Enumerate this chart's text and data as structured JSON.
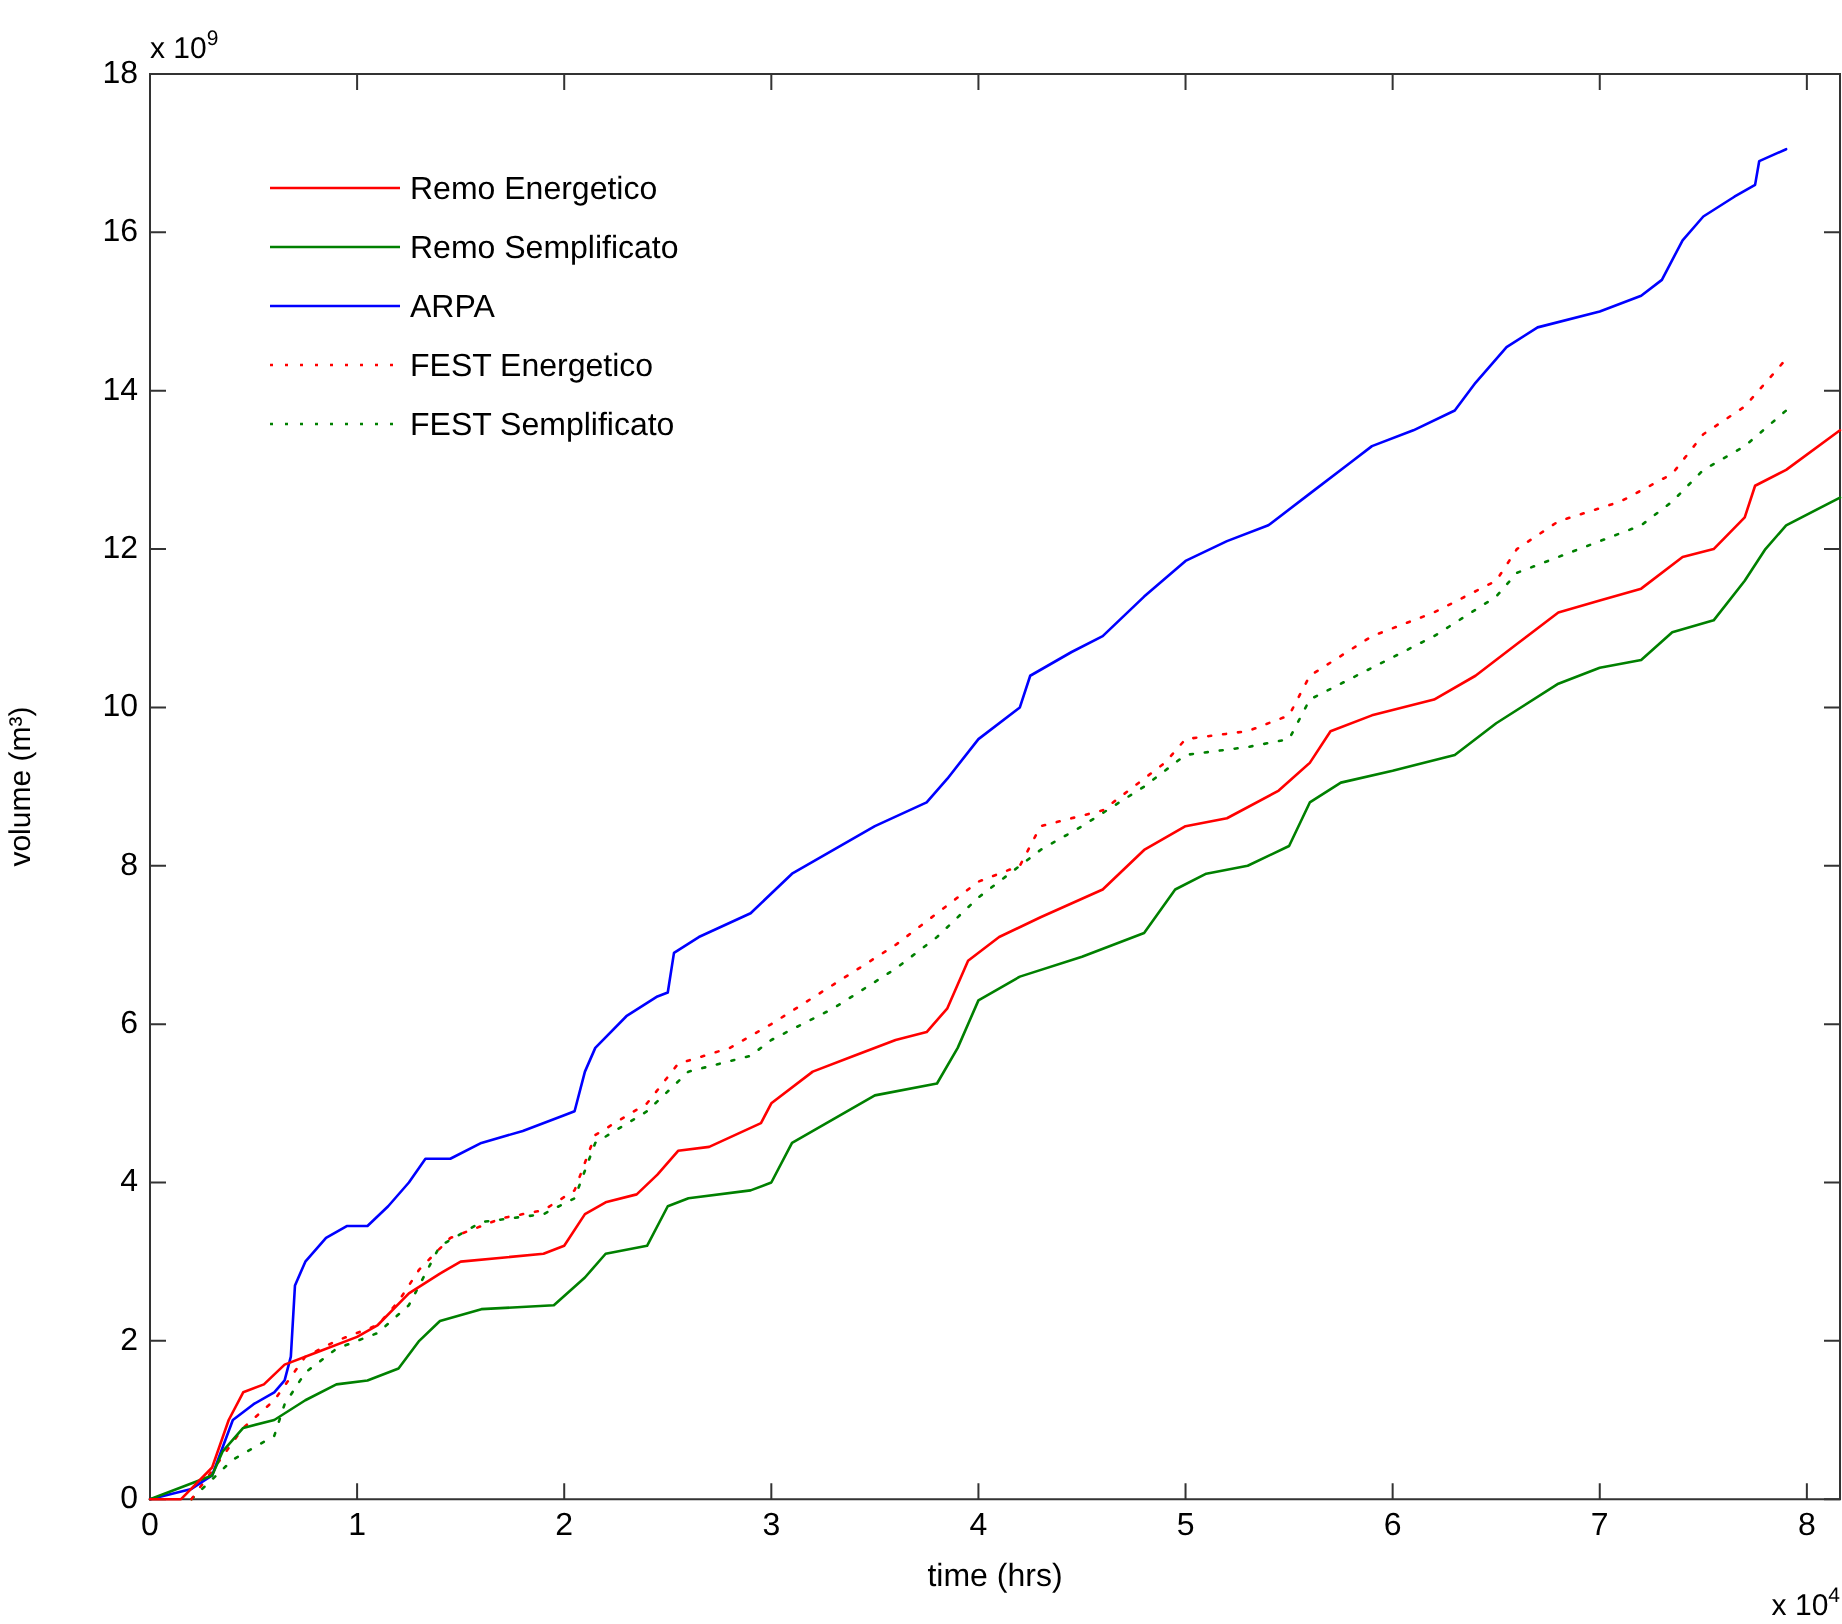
{
  "chart_data": {
    "type": "line",
    "xlabel": "time (hrs)",
    "ylabel": "volume (m³)",
    "xlim": [
      0,
      8.16
    ],
    "ylim": [
      0,
      18
    ],
    "xticks": [
      0,
      1,
      2,
      3,
      4,
      5,
      6,
      7,
      8
    ],
    "yticks": [
      0,
      2,
      4,
      6,
      8,
      10,
      12,
      14,
      16,
      18
    ],
    "grid": false,
    "legend": "top left",
    "marker": "none",
    "annotations": [
      "x 10$^{9}$",
      "x 10$^{4}$"
    ],
    "series": [
      {
        "name": "Remo Energetico",
        "color": "#ff0000",
        "line_style": "solid",
        "x": [
          0,
          0.15,
          0.3,
          0.38,
          0.45,
          0.55,
          0.65,
          0.8,
          1.0,
          1.1,
          1.25,
          1.4,
          1.5,
          1.9,
          2.0,
          2.1,
          2.2,
          2.35,
          2.45,
          2.55,
          2.7,
          2.95,
          3.0,
          3.2,
          3.4,
          3.6,
          3.75,
          3.85,
          3.95,
          4.1,
          4.3,
          4.6,
          4.8,
          5.0,
          5.2,
          5.45,
          5.6,
          5.7,
          5.9,
          6.2,
          6.4,
          6.6,
          6.8,
          7.0,
          7.2,
          7.4,
          7.55,
          7.7,
          7.75,
          7.9,
          8.16
        ],
        "values": [
          0,
          0,
          0.4,
          1.0,
          1.35,
          1.45,
          1.7,
          1.85,
          2.05,
          2.2,
          2.6,
          2.85,
          3.0,
          3.1,
          3.2,
          3.6,
          3.75,
          3.85,
          4.1,
          4.4,
          4.45,
          4.75,
          5.0,
          5.4,
          5.6,
          5.8,
          5.9,
          6.2,
          6.8,
          7.1,
          7.35,
          7.7,
          8.2,
          8.5,
          8.6,
          8.95,
          9.3,
          9.7,
          9.9,
          10.1,
          10.4,
          10.8,
          11.2,
          11.35,
          11.5,
          11.9,
          12.0,
          12.4,
          12.8,
          13.0,
          13.5
        ]
      },
      {
        "name": "Remo Semplificato",
        "color": "#008000",
        "line_style": "solid",
        "x": [
          0,
          0.3,
          0.35,
          0.45,
          0.6,
          0.75,
          0.9,
          1.05,
          1.2,
          1.3,
          1.4,
          1.6,
          1.95,
          2.1,
          2.2,
          2.4,
          2.5,
          2.6,
          2.9,
          3.0,
          3.1,
          3.3,
          3.5,
          3.8,
          3.9,
          4.0,
          4.2,
          4.5,
          4.8,
          4.95,
          5.1,
          5.3,
          5.5,
          5.6,
          5.75,
          6.0,
          6.3,
          6.5,
          6.8,
          7.0,
          7.2,
          7.35,
          7.55,
          7.7,
          7.8,
          7.9,
          8.16
        ],
        "values": [
          0,
          0.3,
          0.6,
          0.9,
          1.0,
          1.25,
          1.45,
          1.5,
          1.65,
          2.0,
          2.25,
          2.4,
          2.45,
          2.8,
          3.1,
          3.2,
          3.7,
          3.8,
          3.9,
          4.0,
          4.5,
          4.8,
          5.1,
          5.25,
          5.7,
          6.3,
          6.6,
          6.85,
          7.15,
          7.7,
          7.9,
          8.0,
          8.25,
          8.8,
          9.05,
          9.2,
          9.4,
          9.8,
          10.3,
          10.5,
          10.6,
          10.95,
          11.1,
          11.6,
          12.0,
          12.3,
          12.65
        ]
      },
      {
        "name": "ARPA",
        "color": "#0000ff",
        "line_style": "solid",
        "x": [
          0,
          0.2,
          0.3,
          0.4,
          0.5,
          0.6,
          0.65,
          0.68,
          0.7,
          0.75,
          0.85,
          0.95,
          1.05,
          1.15,
          1.25,
          1.33,
          1.45,
          1.6,
          1.8,
          2.0,
          2.05,
          2.1,
          2.15,
          2.3,
          2.45,
          2.5,
          2.53,
          2.65,
          2.9,
          3.1,
          3.3,
          3.5,
          3.75,
          3.85,
          4.0,
          4.2,
          4.25,
          4.45,
          4.6,
          4.8,
          5.0,
          5.2,
          5.4,
          5.6,
          5.8,
          5.9,
          6.1,
          6.3,
          6.4,
          6.55,
          6.7,
          7.0,
          7.2,
          7.3,
          7.4,
          7.5,
          7.65,
          7.75,
          7.77,
          7.9
        ],
        "values": [
          0,
          0.13,
          0.3,
          1.0,
          1.2,
          1.35,
          1.5,
          1.8,
          2.7,
          3.0,
          3.3,
          3.45,
          3.45,
          3.7,
          4.0,
          4.3,
          4.3,
          4.5,
          4.65,
          4.85,
          4.9,
          5.4,
          5.7,
          6.1,
          6.35,
          6.4,
          6.9,
          7.1,
          7.4,
          7.9,
          8.2,
          8.5,
          8.8,
          9.1,
          9.6,
          10.0,
          10.4,
          10.7,
          10.9,
          11.4,
          11.85,
          12.1,
          12.3,
          12.7,
          13.1,
          13.3,
          13.5,
          13.75,
          14.1,
          14.55,
          14.8,
          15.0,
          15.2,
          15.4,
          15.9,
          16.2,
          16.45,
          16.6,
          16.9,
          17.05
        ]
      },
      {
        "name": "FEST Energetico",
        "color": "#ff0000",
        "line_style": "dotted",
        "x": [
          0.2,
          0.45,
          0.6,
          0.75,
          0.9,
          1.1,
          1.2,
          1.3,
          1.45,
          1.7,
          1.9,
          2.05,
          2.15,
          2.4,
          2.55,
          2.8,
          3.0,
          3.3,
          3.6,
          3.8,
          4.0,
          4.2,
          4.3,
          4.6,
          4.9,
          5.0,
          5.3,
          5.5,
          5.6,
          5.9,
          6.2,
          6.5,
          6.6,
          6.8,
          7.1,
          7.35,
          7.5,
          7.7,
          7.9
        ],
        "values": [
          0,
          0.9,
          1.25,
          1.8,
          2.0,
          2.2,
          2.5,
          2.9,
          3.3,
          3.55,
          3.65,
          3.9,
          4.6,
          5.0,
          5.5,
          5.7,
          6.0,
          6.5,
          7.0,
          7.4,
          7.8,
          8.0,
          8.5,
          8.7,
          9.3,
          9.6,
          9.7,
          9.9,
          10.4,
          10.9,
          11.2,
          11.6,
          12.0,
          12.35,
          12.6,
          12.95,
          13.45,
          13.8,
          14.4
        ]
      },
      {
        "name": "FEST Semplificato",
        "color": "#008000",
        "line_style": "dotted",
        "x": [
          0.2,
          0.4,
          0.6,
          0.65,
          0.75,
          0.9,
          1.1,
          1.25,
          1.4,
          1.6,
          1.9,
          2.05,
          2.15,
          2.4,
          2.6,
          2.9,
          3.0,
          3.3,
          3.6,
          3.8,
          4.0,
          4.3,
          4.5,
          4.8,
          5.0,
          5.3,
          5.5,
          5.6,
          5.9,
          6.2,
          6.5,
          6.6,
          6.8,
          7.2,
          7.35,
          7.5,
          7.7,
          7.9
        ],
        "values": [
          0,
          0.5,
          0.8,
          1.2,
          1.6,
          1.9,
          2.1,
          2.45,
          3.2,
          3.5,
          3.6,
          3.8,
          4.5,
          4.9,
          5.4,
          5.6,
          5.8,
          6.2,
          6.7,
          7.1,
          7.6,
          8.2,
          8.5,
          9.0,
          9.4,
          9.5,
          9.6,
          10.1,
          10.5,
          10.9,
          11.4,
          11.7,
          11.9,
          12.3,
          12.6,
          13.0,
          13.3,
          13.75
        ]
      }
    ]
  }
}
